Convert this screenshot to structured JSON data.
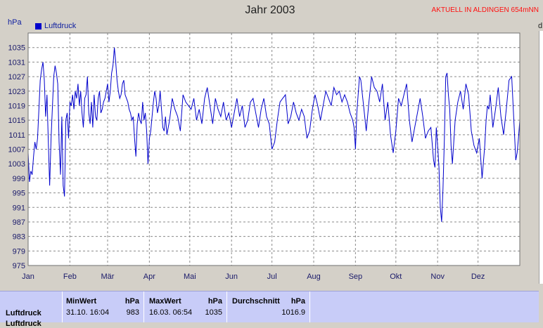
{
  "header": {
    "title": "Jahr 2003",
    "live_link": "AKTUELL IN ALDINGEN 654mNN",
    "unit": "hPa",
    "right_edge_label": "d"
  },
  "chart_data": {
    "type": "line",
    "title": "Jahr 2003",
    "ylabel": "hPa",
    "ylim": [
      975,
      1039
    ],
    "yticks": [
      975,
      979,
      983,
      987,
      991,
      995,
      999,
      1003,
      1007,
      1011,
      1015,
      1019,
      1023,
      1027,
      1031,
      1035
    ],
    "month_labels": [
      "Jan",
      "Feb",
      "Mär",
      "Apr",
      "Mai",
      "Jun",
      "Jul",
      "Aug",
      "Sep",
      "Okt",
      "Nov",
      "Dez"
    ],
    "month_starts": [
      1,
      32,
      60,
      91,
      121,
      152,
      182,
      213,
      244,
      274,
      305,
      335
    ],
    "x_range": [
      1,
      366
    ],
    "grid": true,
    "legend_position": "top-left",
    "series": [
      {
        "name": "Luftdruck",
        "color": "#0000cc",
        "x": [
          1,
          2,
          3,
          4,
          5,
          6,
          7,
          8,
          9,
          10,
          11,
          12,
          13,
          14,
          15,
          16,
          17,
          18,
          20,
          21,
          22,
          23,
          24,
          25,
          26,
          27,
          28,
          29,
          30,
          31,
          32,
          33,
          34,
          35,
          36,
          37,
          38,
          39,
          40,
          41,
          42,
          43,
          44,
          45,
          46,
          47,
          48,
          49,
          50,
          51,
          52,
          53,
          54,
          55,
          56,
          57,
          58,
          60,
          61,
          62,
          63,
          64,
          65,
          66,
          67,
          68,
          69,
          70,
          71,
          72,
          73,
          74,
          75,
          76,
          77,
          78,
          79,
          80,
          81,
          82,
          83,
          84,
          85,
          86,
          87,
          88,
          89,
          90,
          91,
          92,
          93,
          94,
          95,
          96,
          97,
          98,
          99,
          100,
          101,
          102,
          103,
          104,
          105,
          106,
          108,
          110,
          112,
          114,
          116,
          118,
          120,
          122,
          124,
          126,
          128,
          130,
          132,
          134,
          136,
          138,
          140,
          142,
          144,
          146,
          148,
          150,
          152,
          154,
          156,
          158,
          160,
          162,
          164,
          166,
          168,
          170,
          172,
          174,
          176,
          178,
          180,
          182,
          184,
          186,
          188,
          190,
          192,
          194,
          196,
          198,
          200,
          202,
          204,
          206,
          208,
          210,
          212,
          214,
          216,
          218,
          220,
          222,
          224,
          226,
          228,
          230,
          232,
          234,
          236,
          238,
          240,
          242,
          243,
          244,
          245,
          246,
          247,
          248,
          250,
          252,
          254,
          256,
          258,
          260,
          262,
          264,
          266,
          268,
          270,
          272,
          274,
          276,
          278,
          280,
          282,
          284,
          286,
          288,
          290,
          292,
          294,
          296,
          298,
          300,
          302,
          303,
          304,
          305,
          306,
          307,
          308,
          309,
          310,
          311,
          312,
          313,
          314,
          315,
          316,
          318,
          320,
          322,
          324,
          326,
          328,
          330,
          332,
          334,
          336,
          338,
          340,
          341,
          342,
          343,
          344,
          346,
          348,
          350,
          352,
          354,
          356,
          358,
          360,
          362,
          363,
          364,
          365,
          366
        ],
        "values": [
          1006,
          998,
          1001,
          1000,
          1005,
          1009,
          1007,
          1010,
          1018,
          1026,
          1029,
          1031,
          1026,
          1016,
          1022,
          1009,
          997,
          1010,
          1027,
          1030,
          1028,
          1025,
          1009,
          1000,
          1016,
          997,
          994,
          1015,
          1017,
          1010,
          1020,
          1019,
          1022,
          1018,
          1023,
          1021,
          1025,
          1019,
          1023,
          1017,
          1013,
          1021,
          1022,
          1027,
          1017,
          1014,
          1020,
          1013,
          1022,
          1016,
          1015,
          1021,
          1023,
          1017,
          1018,
          1020,
          1021,
          1025,
          1020,
          1023,
          1028,
          1030,
          1035,
          1031,
          1026,
          1023,
          1021,
          1022,
          1025,
          1026,
          1022,
          1021,
          1020,
          1018,
          1017,
          1015,
          1016,
          1010,
          1005,
          1014,
          1017,
          1015,
          1014,
          1020,
          1015,
          1017,
          1012,
          1003,
          1010,
          1012,
          1016,
          1020,
          1023,
          1021,
          1017,
          1019,
          1023,
          1018,
          1013,
          1012,
          1016,
          1011,
          1013,
          1015,
          1021,
          1018,
          1016,
          1012,
          1022,
          1020,
          1019,
          1018,
          1021,
          1015,
          1018,
          1014,
          1021,
          1024,
          1019,
          1014,
          1021,
          1018,
          1016,
          1020,
          1015,
          1017,
          1013,
          1017,
          1021,
          1016,
          1019,
          1013,
          1015,
          1020,
          1021,
          1017,
          1013,
          1018,
          1021,
          1016,
          1014,
          1007,
          1009,
          1015,
          1020,
          1021,
          1022,
          1014,
          1016,
          1020,
          1017,
          1015,
          1018,
          1016,
          1010,
          1012,
          1018,
          1022,
          1019,
          1015,
          1019,
          1023,
          1021,
          1019,
          1024,
          1022,
          1023,
          1020,
          1022,
          1020,
          1017,
          1015,
          1013,
          1007,
          1017,
          1022,
          1027,
          1026,
          1019,
          1012,
          1020,
          1027,
          1024,
          1023,
          1020,
          1025,
          1015,
          1020,
          1011,
          1006,
          1012,
          1021,
          1019,
          1022,
          1025,
          1015,
          1009,
          1013,
          1017,
          1021,
          1016,
          1010,
          1012,
          1013,
          1004,
          1002,
          1013,
          1008,
          1002,
          991,
          987,
          996,
          1010,
          1027,
          1028,
          1022,
          1018,
          1008,
          1003,
          1015,
          1020,
          1023,
          1018,
          1025,
          1022,
          1012,
          1008,
          1006,
          1010,
          999,
          1008,
          1015,
          1019,
          1018,
          1022,
          1013,
          1018,
          1024,
          1016,
          1011,
          1018,
          1026,
          1027,
          1012,
          1004,
          1006,
          1010,
          1015
        ]
      }
    ]
  },
  "stats": {
    "columns": [
      {
        "header": "MinWert",
        "unit": "hPa",
        "date": "31.10. 16:04",
        "value": "983"
      },
      {
        "header": "MaxWert",
        "unit": "hPa",
        "date": "16.03. 06:54",
        "value": "1035"
      },
      {
        "header": "Durchschnitt",
        "unit": "hPa",
        "date": "",
        "value": "1016.9"
      }
    ],
    "row_label": "Luftdruck",
    "next_row_label": "Luftdruck"
  }
}
